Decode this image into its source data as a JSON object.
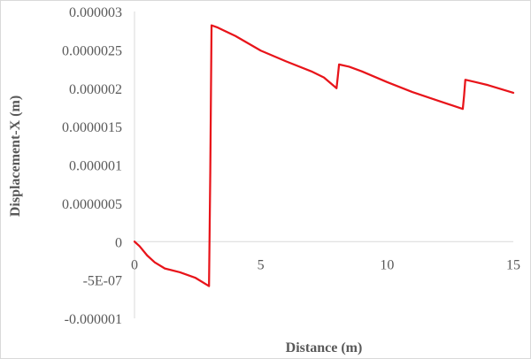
{
  "chart_data": {
    "type": "line",
    "title": "",
    "xlabel": "Distance (m)",
    "ylabel": "Displacement-X (m)",
    "xlim": [
      0,
      15
    ],
    "ylim": [
      -1e-06,
      3e-06
    ],
    "x_ticks": [
      0,
      5,
      10,
      15
    ],
    "x_tick_labels": [
      "0",
      "5",
      "10",
      "15"
    ],
    "y_ticks": [
      3e-06,
      2.5e-06,
      2e-06,
      1.5e-06,
      1e-06,
      5e-07,
      0,
      -5e-07,
      -1e-06
    ],
    "y_tick_labels": [
      "0.000003",
      "0.0000025",
      "0.000002",
      "0.0000015",
      "0.000001",
      "0.0000005",
      "0",
      "-5E-07",
      "-0.000001"
    ],
    "grid": false,
    "line_color": "#e8141a",
    "axis_color": "#d9d9d9",
    "series": [
      {
        "x": [
          0,
          0.2,
          0.5,
          0.8,
          1.2,
          1.8,
          2.4,
          2.95,
          3.0,
          3.05,
          3.3,
          4,
          5,
          6,
          7,
          7.5,
          8.0,
          8.05,
          8.1,
          8.5,
          9,
          10,
          11,
          12,
          13.0,
          13.05,
          13.1,
          13.5,
          14,
          15
        ],
        "y": [
          0,
          -6e-08,
          -1.8e-07,
          -2.7e-07,
          -3.5e-07,
          -4e-07,
          -4.7e-07,
          -5.8e-07,
          9e-07,
          2.82e-06,
          2.79e-06,
          2.68e-06,
          2.49e-06,
          2.35e-06,
          2.22e-06,
          2.14e-06,
          2e-06,
          2.15e-06,
          2.31e-06,
          2.28e-06,
          2.22e-06,
          2.08e-06,
          1.95e-06,
          1.84e-06,
          1.73e-06,
          1.9e-06,
          2.11e-06,
          2.08e-06,
          2.04e-06,
          1.94e-06
        ]
      }
    ]
  }
}
